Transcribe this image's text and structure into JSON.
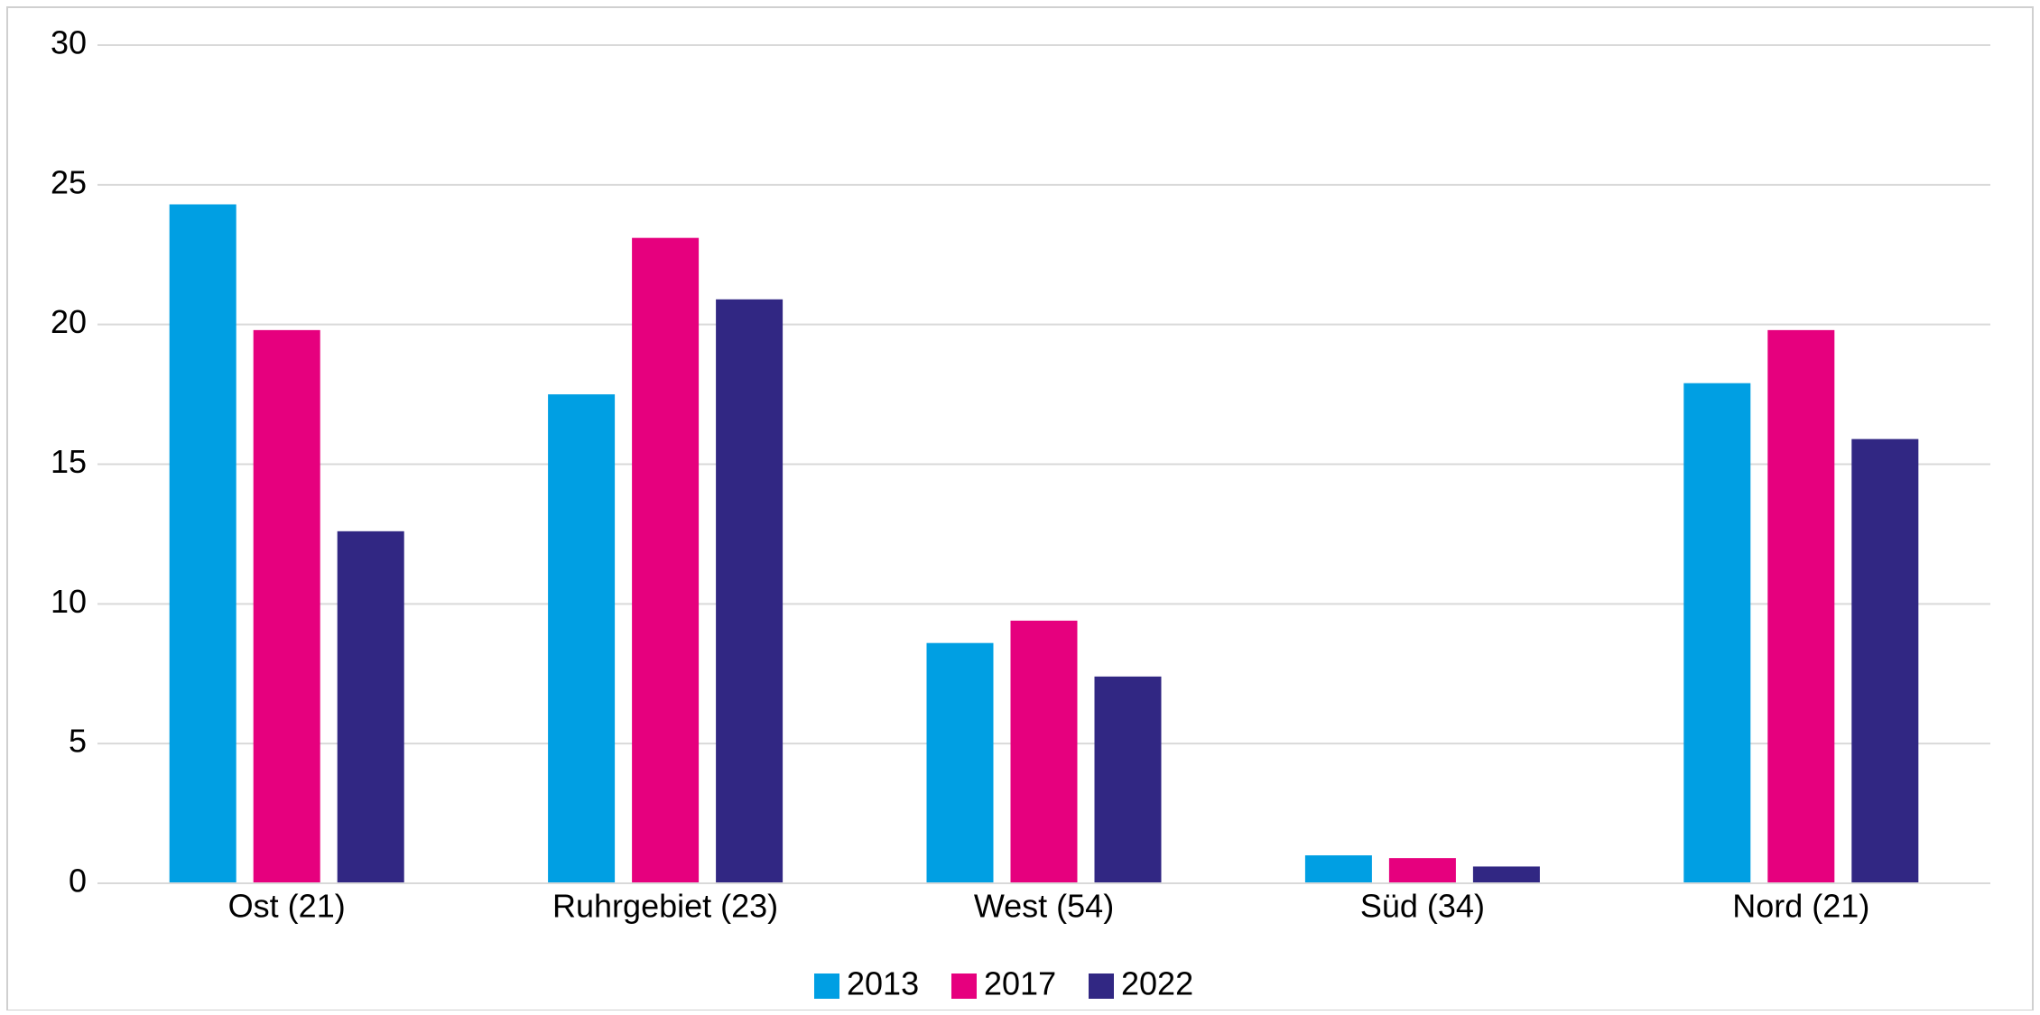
{
  "chart_data": {
    "type": "bar",
    "categories": [
      "Ost (21)",
      "Ruhrgebiet (23)",
      "West (54)",
      "Süd (34)",
      "Nord (21)"
    ],
    "series": [
      {
        "name": "2013",
        "color": "#009fe3",
        "values": [
          24.3,
          17.5,
          8.6,
          1.0,
          17.9
        ]
      },
      {
        "name": "2017",
        "color": "#e6007e",
        "values": [
          19.8,
          23.1,
          9.4,
          0.9,
          19.8
        ]
      },
      {
        "name": "2022",
        "color": "#312783",
        "values": [
          12.6,
          20.9,
          7.4,
          0.6,
          15.9
        ]
      }
    ],
    "ylim": [
      0,
      30
    ],
    "yticks": [
      0,
      5,
      10,
      15,
      20,
      25,
      30
    ],
    "grid": true,
    "legend": "bottom"
  }
}
